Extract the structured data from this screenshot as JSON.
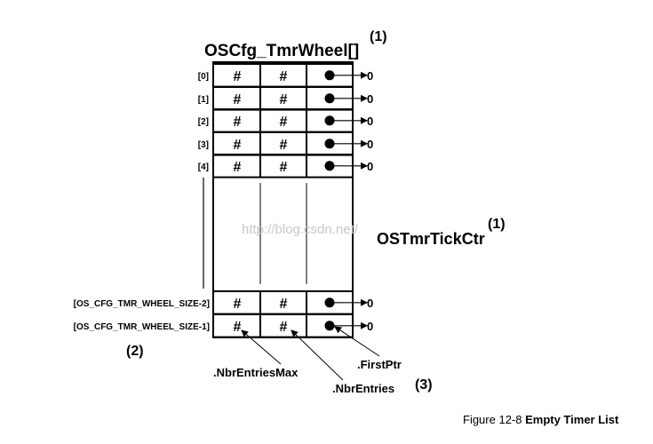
{
  "diagram": {
    "title": "OSCfg_TmrWheel[]",
    "title_note": "(1)",
    "tick_counter_label": "OSTmrTickCtr",
    "tick_counter_note": "(1)",
    "row_indices": [
      "[0]",
      "[1]",
      "[2]",
      "[3]",
      "[4]"
    ],
    "bottom_row_indices": [
      "[OS_CFG_TMR_WHEEL_SIZE-2]",
      "[OS_CFG_TMR_WHEEL_SIZE-1]"
    ],
    "cell_symbol": "#",
    "null_value": "0",
    "bracket_note": "(2)",
    "field_labels": {
      "nbr_entries_max": ".NbrEntriesMax",
      "nbr_entries": ".NbrEntries",
      "first_ptr": ".FirstPtr"
    },
    "field_note": "(3)",
    "watermark": "http://blog.csdn.net/"
  },
  "caption": {
    "prefix": "Figure 12-8 ",
    "title": "Empty Timer List"
  },
  "colors": {
    "ink": "#000000",
    "watermark": "#c8c8c8"
  }
}
